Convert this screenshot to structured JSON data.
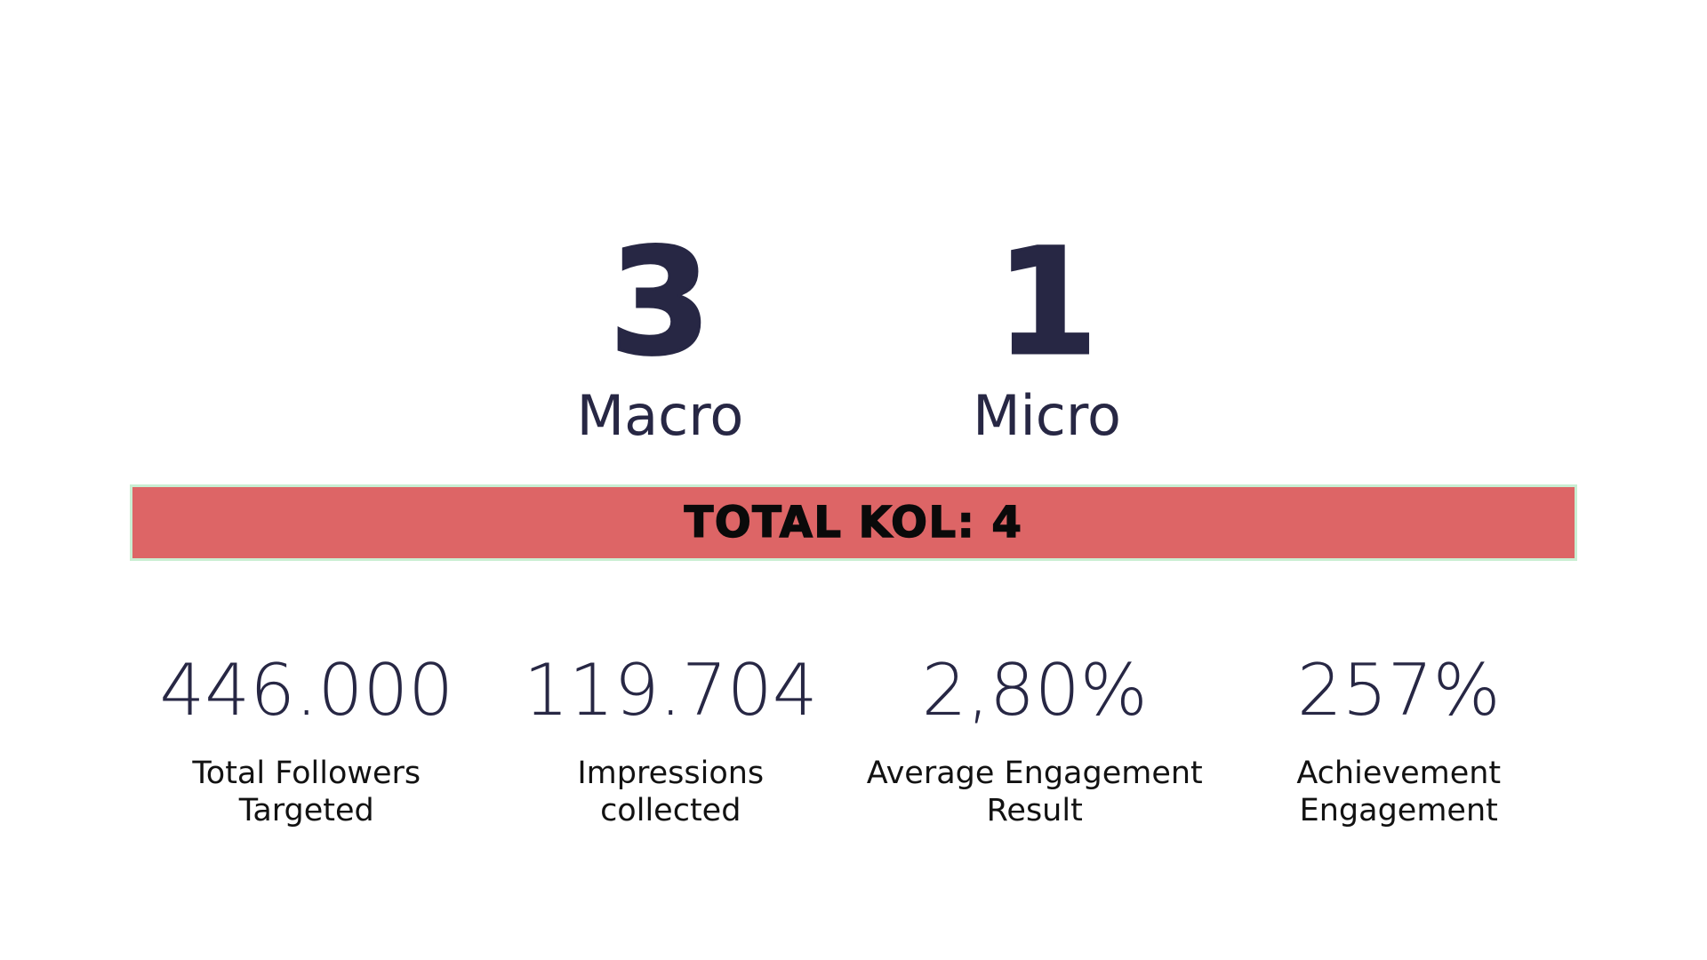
{
  "kol": {
    "items": [
      {
        "count": "3",
        "label": "Macro"
      },
      {
        "count": "1",
        "label": "Micro"
      }
    ]
  },
  "banner": {
    "text": "TOTAL KOL: 4"
  },
  "stats": {
    "items": [
      {
        "value": "446.000",
        "label": "Total Followers\nTargeted"
      },
      {
        "value": "119.704",
        "label": "Impressions\ncollected"
      },
      {
        "value": "2,80%",
        "label": "Average Engagement\nResult"
      },
      {
        "value": "257%",
        "label": "Achievement\nEngagement"
      }
    ]
  },
  "colors": {
    "accent_red": "#dd6566",
    "banner_border_mint": "#c9eed2",
    "navy": "#272744",
    "label_ink": "#121212"
  }
}
